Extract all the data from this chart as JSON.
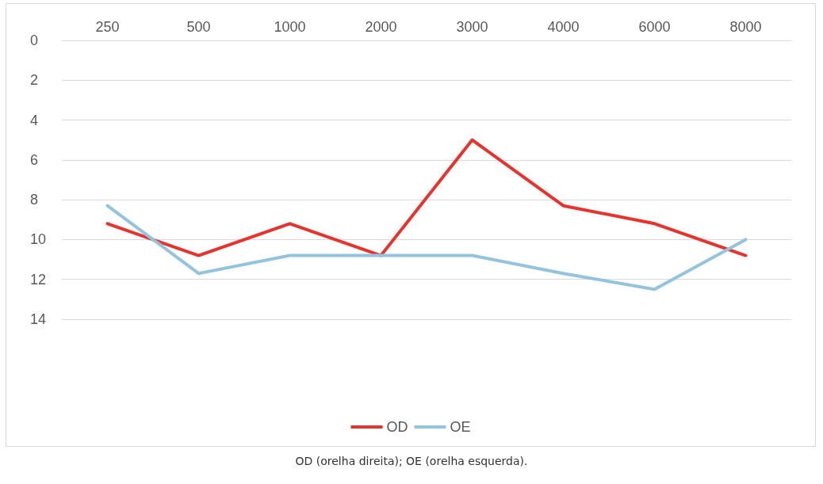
{
  "chart_data": {
    "type": "line",
    "categories": [
      "250",
      "500",
      "1000",
      "2000",
      "3000",
      "4000",
      "6000",
      "8000"
    ],
    "series": [
      {
        "name": "OD",
        "color": "#e8322b",
        "values": [
          9.2,
          10.8,
          9.2,
          10.8,
          5,
          8.3,
          9.2,
          10.8
        ]
      },
      {
        "name": "OE",
        "color": "#93c4dd",
        "values": [
          8.3,
          11.7,
          10.8,
          10.8,
          10.8,
          11.7,
          12.5,
          10
        ]
      }
    ],
    "ylim": [
      14,
      0
    ],
    "yticks": [
      0,
      2,
      4,
      6,
      8,
      10,
      12,
      14
    ],
    "grid": "y",
    "legend": "bottom",
    "marker": "none",
    "line_style": "solid",
    "annotations": [
      "OD (orelha direita); OE (orelha esquerda)."
    ]
  }
}
